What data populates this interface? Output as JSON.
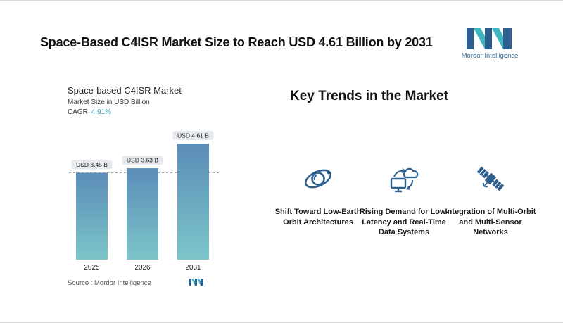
{
  "header": {
    "title": "Space-Based C4ISR Market Size to Reach USD 4.61 Billion by 2031",
    "brand": "Mordor Intelligence"
  },
  "chart": {
    "title": "Space-based C4ISR Market",
    "subtitle": "Market Size in USD Billion",
    "cagr_label": "CAGR",
    "cagr_value": "4.91%",
    "source": "Source :  Mordor Intelligence"
  },
  "chart_data": {
    "type": "bar",
    "title": "Space-based C4ISR Market",
    "ylabel": "Market Size in USD Billion",
    "categories": [
      "2025",
      "2026",
      "2031"
    ],
    "values": [
      3.45,
      3.63,
      4.61
    ],
    "data_labels": [
      "USD 3.45 B",
      "USD 3.63 B",
      "USD 4.61 B"
    ],
    "ylim": [
      0,
      4.61
    ],
    "reference_line": 3.45,
    "grid": false,
    "colors": {
      "bar_top": "#5b8db8",
      "bar_bottom": "#7cc5c9",
      "label_bg": "#e6e9ed",
      "dash": "#9aa7b4"
    }
  },
  "trends": {
    "title": "Key Trends in the Market",
    "items": [
      {
        "icon": "orbit-icon",
        "label": "Shift Toward Low-Earth Orbit Architectures"
      },
      {
        "icon": "cloud-monitor-icon",
        "label": "Rising Demand for Low-Latency and Real-Time Data Systems"
      },
      {
        "icon": "satellite-icon",
        "label": "Integration of Multi-Orbit and Multi-Sensor Networks"
      }
    ]
  },
  "colors": {
    "accent": "#2e5f8f",
    "teal": "#3fb5c0",
    "title": "#111111"
  }
}
